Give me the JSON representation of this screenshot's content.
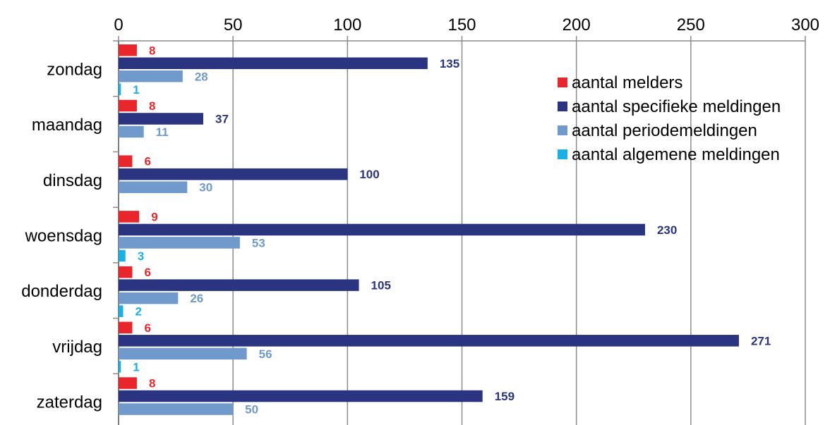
{
  "chart_data": {
    "type": "bar",
    "orientation": "horizontal",
    "categories": [
      "zondag",
      "maandag",
      "dinsdag",
      "woensdag",
      "donderdag",
      "vrijdag",
      "zaterdag"
    ],
    "series": [
      {
        "name": "aantal melders",
        "color": "#e8262b",
        "values": [
          8,
          8,
          6,
          9,
          6,
          6,
          8
        ]
      },
      {
        "name": "aantal specifieke meldingen",
        "color": "#2b3480",
        "values": [
          135,
          37,
          100,
          230,
          105,
          271,
          159
        ]
      },
      {
        "name": "aantal periodemeldingen",
        "color": "#6f9acb",
        "values": [
          28,
          11,
          30,
          53,
          26,
          56,
          50
        ]
      },
      {
        "name": "aantal algemene meldingen",
        "color": "#1ab0e6",
        "values": [
          1,
          null,
          null,
          3,
          2,
          1,
          null
        ]
      }
    ],
    "xlim": [
      0,
      300
    ],
    "xticks": [
      "0",
      "50",
      "100",
      "150",
      "200",
      "250",
      "300"
    ],
    "x_axis_position": "top",
    "grid": "vertical",
    "legend_position": "right",
    "xlabel": "",
    "ylabel": "",
    "title": ""
  }
}
